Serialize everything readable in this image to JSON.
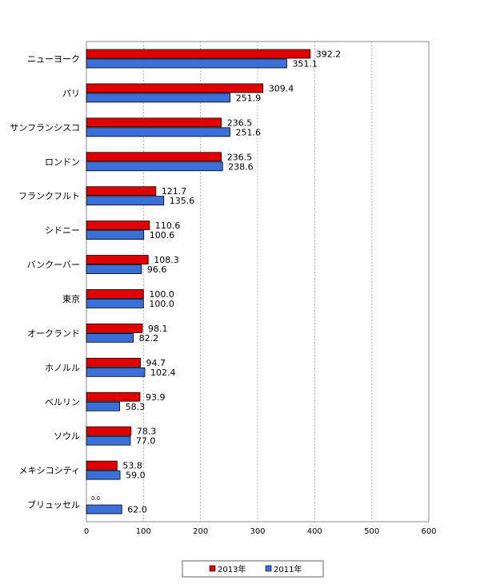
{
  "chart_data": {
    "type": "bar",
    "orientation": "horizontal",
    "categories": [
      "ニューヨーク",
      "パリ",
      "サンフランシスコ",
      "ロンドン",
      "フランクフルト",
      "シドニー",
      "バンクーバー",
      "東京",
      "オークランド",
      "ホノルル",
      "ベルリン",
      "ソウル",
      "メキシコシティ",
      "ブリュッセル"
    ],
    "series": [
      {
        "name": "2013年",
        "color": "#e00000",
        "values": [
          392.2,
          309.4,
          236.5,
          236.5,
          121.7,
          110.6,
          108.3,
          100.0,
          98.1,
          94.7,
          93.9,
          78.3,
          53.8,
          0.0
        ],
        "labels": [
          "392.2",
          "309.4",
          "236.5",
          "236.5",
          "121.7",
          "110.6",
          "108.3",
          "100.0",
          "98.1",
          "94.7",
          "93.9",
          "78.3",
          "53.8",
          "0.0"
        ]
      },
      {
        "name": "2011年",
        "color": "#3a6fd8",
        "values": [
          351.1,
          251.9,
          251.6,
          238.6,
          135.6,
          100.6,
          96.6,
          100.0,
          82.2,
          102.4,
          58.3,
          77.0,
          59.0,
          62.0
        ],
        "labels": [
          "351.1",
          "251.9",
          "251.6",
          "238.6",
          "135.6",
          "100.6",
          "96.6",
          "100.0",
          "82.2",
          "102.4",
          "58.3",
          "77.0",
          "59.0",
          "62.0"
        ]
      }
    ],
    "xlim": [
      0,
      600
    ],
    "xticks": [
      "0",
      "100",
      "200",
      "300",
      "400",
      "500",
      "600"
    ],
    "grid": "vertical dashed",
    "legend": "bottom"
  }
}
